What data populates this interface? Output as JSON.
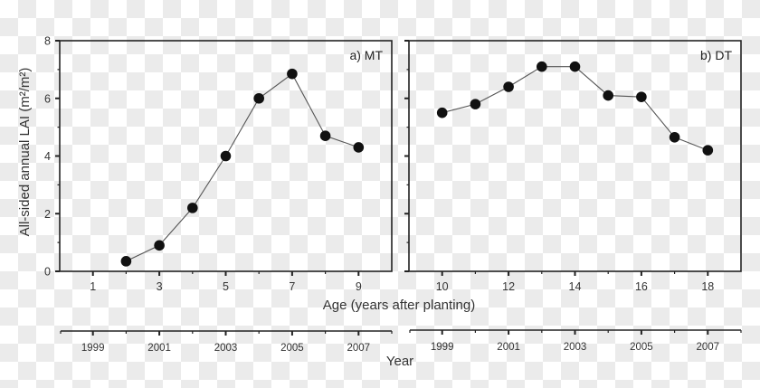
{
  "chart_data": [
    {
      "type": "line",
      "panel": "a",
      "title": "a) MT",
      "xlabel": "Age (years after planting)",
      "ylabel": "All-sided annual LAI (m²/m²)",
      "xlim": [
        0,
        10
      ],
      "ylim": [
        0,
        8
      ],
      "x_ticks_major": [
        1,
        3,
        5,
        7,
        9
      ],
      "x_ticks_minor": [
        2,
        4,
        6,
        8
      ],
      "y_ticks_major": [
        0,
        2,
        4,
        6,
        8
      ],
      "y_ticks_minor": [
        1,
        3,
        5,
        7
      ],
      "grid": false,
      "marker": "filled-circle",
      "x": [
        2,
        3,
        4,
        5,
        6,
        7,
        8,
        9
      ],
      "values": [
        0.35,
        0.9,
        2.2,
        4.0,
        6.0,
        6.85,
        4.7,
        4.3
      ],
      "secondary_x_axis": {
        "label": "Year",
        "ticks": [
          "1999",
          "2001",
          "2003",
          "2005",
          "2007"
        ],
        "age_of_first_tick": 1
      }
    },
    {
      "type": "line",
      "panel": "b",
      "title": "b) DT",
      "xlabel": "Age (years after planting)",
      "ylabel": "All-sided annual LAI (m²/m²)",
      "xlim": [
        9,
        19
      ],
      "ylim": [
        0,
        8
      ],
      "x_ticks_major": [
        10,
        12,
        14,
        16,
        18
      ],
      "x_ticks_minor": [
        11,
        13,
        15,
        17
      ],
      "y_ticks_major": [
        0,
        2,
        4,
        6,
        8
      ],
      "y_ticks_minor": [
        1,
        3,
        5,
        7
      ],
      "grid": false,
      "marker": "filled-circle",
      "x": [
        10,
        11,
        12,
        13,
        14,
        15,
        16,
        17,
        18
      ],
      "values": [
        5.5,
        5.8,
        6.4,
        7.1,
        7.1,
        6.1,
        6.05,
        4.65,
        4.2
      ],
      "secondary_x_axis": {
        "label": "Year",
        "ticks": [
          "1999",
          "2001",
          "2003",
          "2005",
          "2007"
        ],
        "age_of_first_tick": 10
      }
    }
  ],
  "labels": {
    "ylabel": "All-sided annual LAI (m²/m²)",
    "xlabel": "Age (years after planting)",
    "year_label": "Year",
    "panel_a": "a) MT",
    "panel_b": "b) DT"
  },
  "colors": {
    "axis": "#222222",
    "marker": "#111111",
    "line": "#555555",
    "text": "#333333",
    "checker_dark": "#ebebeb",
    "checker_light": "#ffffff"
  }
}
